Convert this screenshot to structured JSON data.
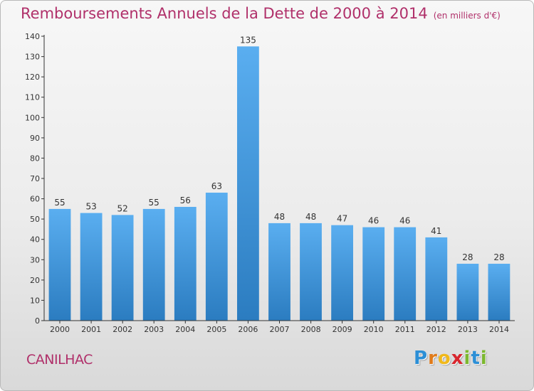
{
  "colors": {
    "title": "#b0306a",
    "bar_top": "#5aaef0",
    "bar_bottom": "#2b7cc0",
    "axis": "#333333",
    "grid": "#dddddd"
  },
  "footer": {
    "commune": "CANILHAC",
    "logo_letters": [
      "P",
      "r",
      "o",
      "x",
      "i",
      "t",
      "i"
    ],
    "logo_colors": [
      "#2c8fd6",
      "#e07b1a",
      "#f0b81b",
      "#d8262e",
      "#7cb82f",
      "#2c8fd6",
      "#7cb82f"
    ]
  },
  "chart_data": {
    "type": "bar",
    "title": "Remboursements Annuels de la Dette de 2000 à 2014",
    "subtitle": "(en milliers d'€)",
    "xlabel": "",
    "ylabel": "",
    "categories": [
      "2000",
      "2001",
      "2002",
      "2003",
      "2004",
      "2005",
      "2006",
      "2007",
      "2008",
      "2009",
      "2010",
      "2011",
      "2012",
      "2013",
      "2014"
    ],
    "values": [
      55,
      53,
      52,
      55,
      56,
      63,
      135,
      48,
      48,
      47,
      46,
      46,
      41,
      28,
      28
    ],
    "data_labels": [
      "55",
      "53",
      "52",
      "55",
      "56",
      "63",
      "135",
      "48",
      "48",
      "47",
      "46",
      "46",
      "41",
      "28",
      "28"
    ],
    "ylim": [
      0,
      140
    ],
    "yticks": [
      0,
      10,
      20,
      30,
      40,
      50,
      60,
      70,
      80,
      90,
      100,
      110,
      120,
      130,
      140
    ],
    "grid": false,
    "legend": "none"
  }
}
